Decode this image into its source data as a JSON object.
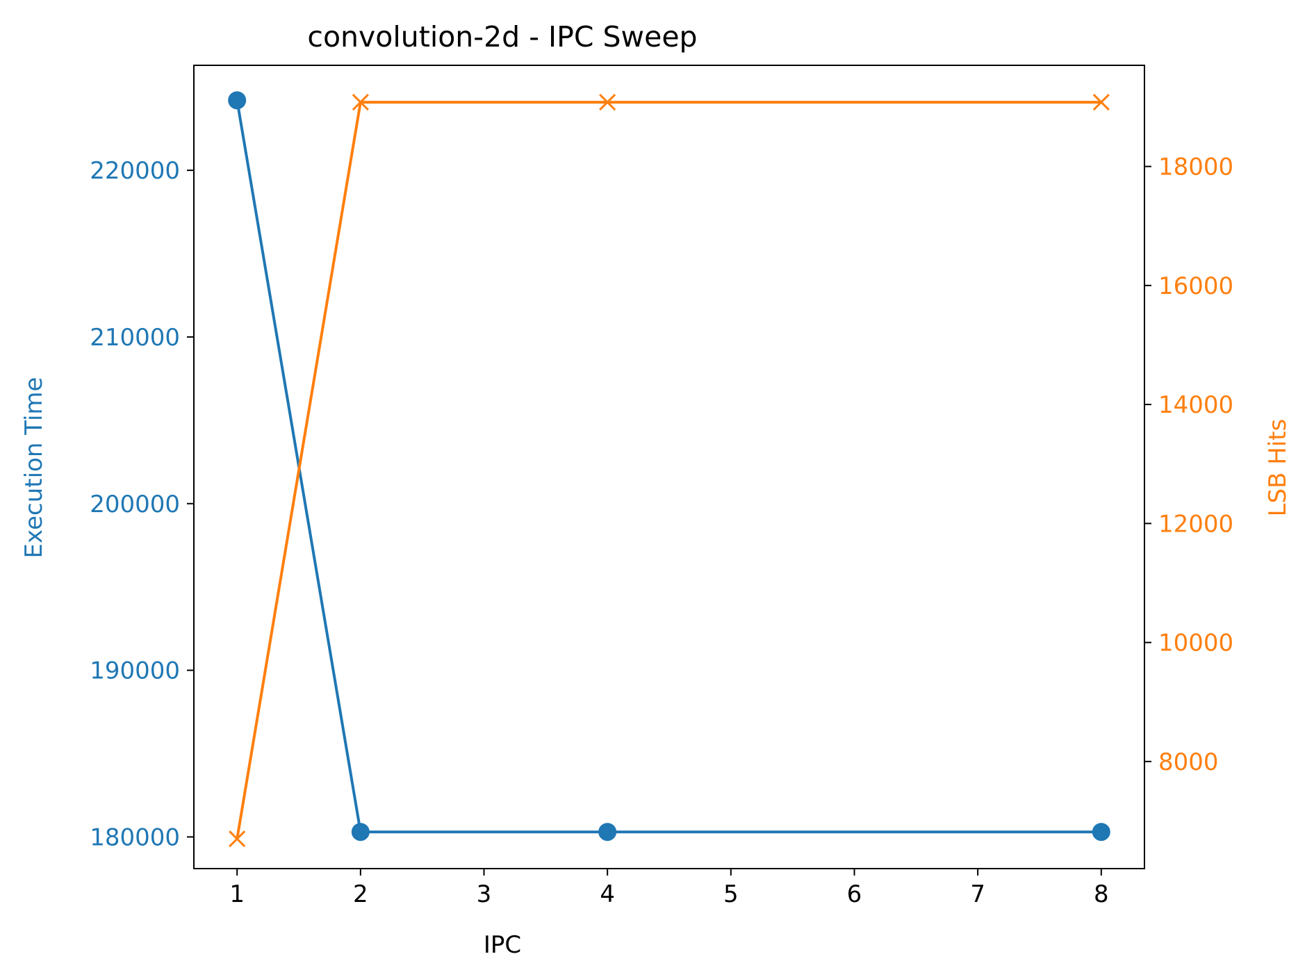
{
  "chart_data": {
    "type": "line",
    "title": "convolution-2d - IPC Sweep",
    "xlabel": "IPC",
    "ylabel_left": "Execution Time",
    "ylabel_right": "LSB Hits",
    "x_ticks": [
      1,
      2,
      3,
      4,
      5,
      6,
      7,
      8
    ],
    "y_left_ticks": [
      180000,
      190000,
      200000,
      210000,
      220000
    ],
    "y_right_ticks": [
      8000,
      10000,
      12000,
      14000,
      16000,
      18000
    ],
    "xlim": [
      0.65,
      8.35
    ],
    "ylim_left": [
      178100,
      226300
    ],
    "ylim_right": [
      6200,
      19700
    ],
    "grid": false,
    "x": [
      1,
      2,
      4,
      8
    ],
    "series": [
      {
        "name": "Execution Time",
        "axis": "left",
        "marker": "circle",
        "color": "#1f77b4",
        "values": [
          224200,
          180300,
          180300,
          180300
        ]
      },
      {
        "name": "LSB Hits",
        "axis": "right",
        "marker": "x",
        "color": "#ff7f0e",
        "values": [
          6700,
          19080,
          19080,
          19080
        ]
      }
    ]
  }
}
